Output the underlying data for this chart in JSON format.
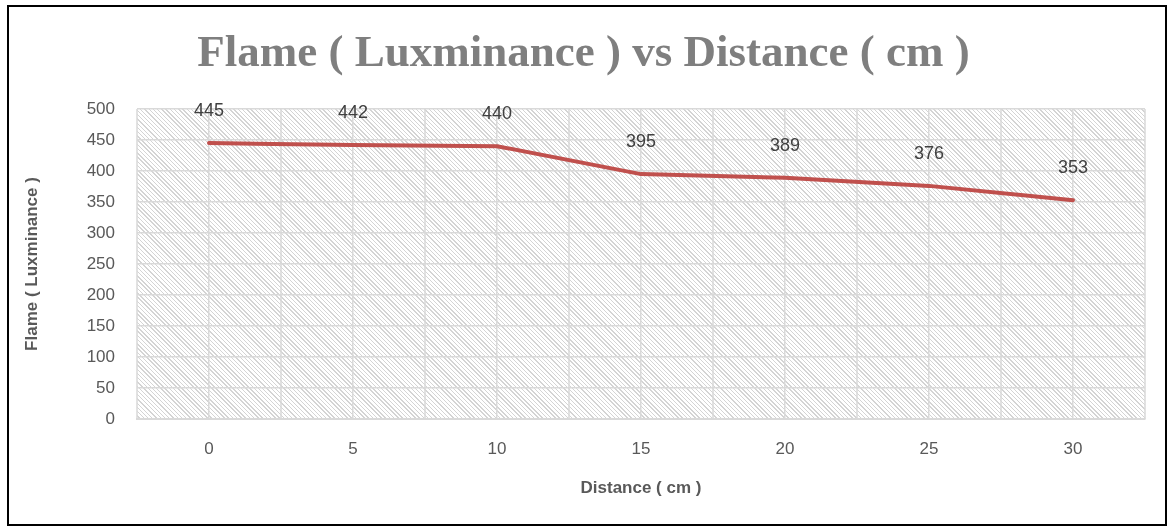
{
  "chart_data": {
    "type": "line",
    "title": "Flame ( Luxminance ) vs Distance ( cm )",
    "xlabel": "Distance ( cm )",
    "ylabel": "Flame ( Luxminance )",
    "categories": [
      "0",
      "5",
      "10",
      "15",
      "20",
      "25",
      "30"
    ],
    "series": [
      {
        "color": "#c0504d",
        "values": [
          445,
          442,
          440,
          395,
          389,
          376,
          353
        ]
      }
    ],
    "ylim": [
      0,
      500
    ],
    "yticks": [
      0,
      50,
      100,
      150,
      200,
      250,
      300,
      350,
      400,
      450,
      500
    ],
    "grid": true,
    "legend": false,
    "data_labels": true,
    "marker": "none",
    "line_style": "solid"
  }
}
